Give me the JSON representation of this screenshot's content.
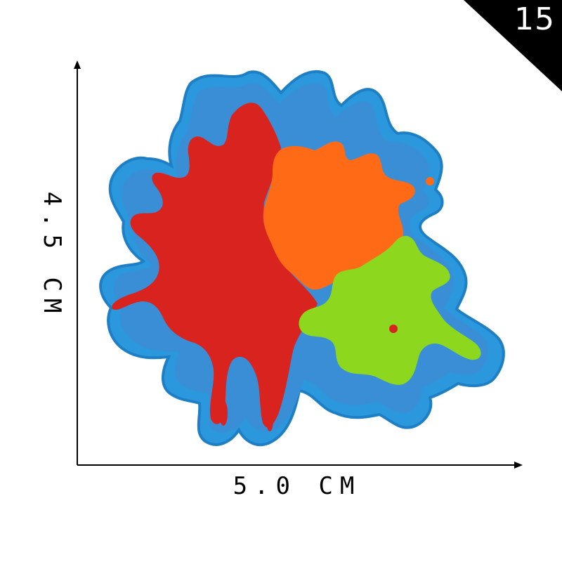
{
  "badge": {
    "number": "15",
    "background_color": "#000000",
    "text_color": "#ffffff"
  },
  "dimensions": {
    "width_label": "5.0 CM",
    "height_label": "4.5 CM"
  },
  "patch": {
    "description_colors": {
      "border": "#2b8fd8",
      "backing": "#3a8ed6",
      "red_splash": "#d8231e",
      "orange_splash": "#ff6a16",
      "green_splash": "#8dd81f"
    }
  }
}
